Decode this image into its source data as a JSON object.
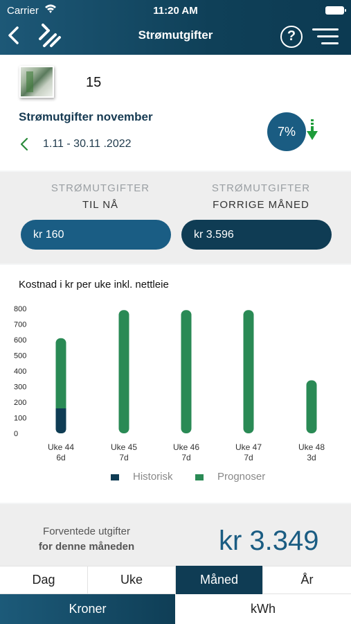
{
  "status_bar": {
    "carrier": "Carrier",
    "time": "11:20 AM"
  },
  "nav": {
    "title": "Strømutgifter",
    "help_label": "?"
  },
  "header": {
    "house_number": "15",
    "period_title": "Strømutgifter november",
    "period_range": "1.11 - 30.11 .2022",
    "change_percent": "7%",
    "change_direction": "down"
  },
  "totals": {
    "current": {
      "label_line1": "STRØMUTGIFTER",
      "label_line2": "TIL NÅ",
      "value": "kr 160"
    },
    "previous": {
      "label_line1": "STRØMUTGIFTER",
      "label_line2": "FORRIGE MÅNED",
      "value": "kr 3.596"
    }
  },
  "chart_data": {
    "type": "bar",
    "title": "Kostnad i kr per uke inkl. nettleie",
    "categories": [
      "Uke 44",
      "Uke 45",
      "Uke 46",
      "Uke 47",
      "Uke 48"
    ],
    "sublabels": [
      "6d",
      "7d",
      "7d",
      "7d",
      "3d"
    ],
    "series": [
      {
        "name": "Historisk",
        "color": "#0f3c54",
        "values": [
          160,
          0,
          0,
          0,
          0
        ]
      },
      {
        "name": "Prognoser",
        "color": "#2a8a55",
        "values": [
          450,
          790,
          790,
          790,
          340
        ]
      }
    ],
    "stacked": true,
    "yticks": [
      0,
      100,
      200,
      300,
      400,
      500,
      600,
      700,
      800
    ],
    "ylim": [
      0,
      800
    ],
    "grid": false,
    "legend": "bottom"
  },
  "forecast": {
    "label_line1": "Forventede utgifter",
    "label_line2": "for denne måneden",
    "value": "kr 3.349"
  },
  "period_tabs": [
    {
      "label": "Dag",
      "active": false
    },
    {
      "label": "Uke",
      "active": false
    },
    {
      "label": "Måned",
      "active": true
    },
    {
      "label": "År",
      "active": false
    }
  ],
  "unit_tabs": [
    {
      "label": "Kroner",
      "active": true
    },
    {
      "label": "kWh",
      "active": false
    }
  ],
  "colors": {
    "brand_dark": "#0f3c54",
    "brand_blue": "#1a5c82",
    "forecast_green": "#2a8a55",
    "arrow_green": "#1e9c3a"
  }
}
